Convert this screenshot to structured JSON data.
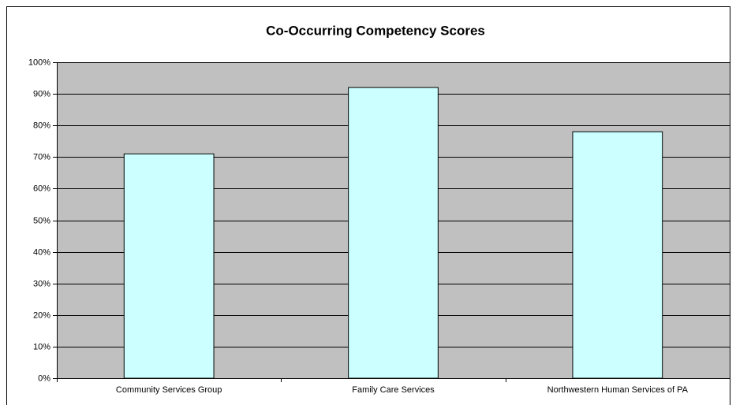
{
  "chart_data": {
    "type": "bar",
    "title": "Co-Occurring Competency Scores",
    "categories": [
      "Community Services Group",
      "Family Care Services",
      "Northwestern Human Services of PA"
    ],
    "values": [
      71,
      92,
      78
    ],
    "color": "#ccffff",
    "ylim": [
      0,
      100
    ],
    "yticks": [
      {
        "value": 0,
        "label": "0%"
      },
      {
        "value": 10,
        "label": "10%"
      },
      {
        "value": 20,
        "label": "20%"
      },
      {
        "value": 30,
        "label": "30%"
      },
      {
        "value": 40,
        "label": "40%"
      },
      {
        "value": 50,
        "label": "50%"
      },
      {
        "value": 60,
        "label": "60%"
      },
      {
        "value": 70,
        "label": "70%"
      },
      {
        "value": 80,
        "label": "80%"
      },
      {
        "value": 90,
        "label": "90%"
      },
      {
        "value": 100,
        "label": "100%"
      }
    ],
    "grid": true
  }
}
